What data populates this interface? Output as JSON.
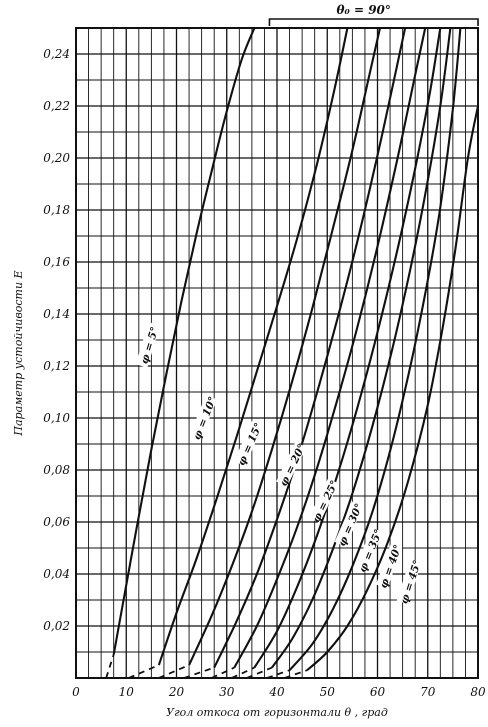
{
  "chart_data": {
    "type": "line",
    "xlabel": "Угол откоса от горизонтали θ , град",
    "ylabel": "Параметр устойчивости E",
    "xlim": [
      0,
      80
    ],
    "ylim": [
      0,
      0.25
    ],
    "grid": true,
    "x_ticks": [
      "0",
      "10",
      "20",
      "30",
      "40",
      "50",
      "60",
      "70",
      "80"
    ],
    "y_ticks": [
      "0,02",
      "0,04",
      "0,06",
      "0,08",
      "0,10",
      "0,12",
      "0,14",
      "0,16",
      "0,18",
      "0,20",
      "0,22",
      "0,24"
    ],
    "annotation": "θ₀ = 90°",
    "series": [
      {
        "name": "φ = 5°",
        "dash_x": [
          6.0,
          7.5
        ],
        "x": [
          7.5,
          9,
          12,
          15,
          18,
          21,
          24,
          27,
          30,
          33,
          35.5
        ],
        "y": [
          0.009,
          0.025,
          0.057,
          0.088,
          0.117,
          0.145,
          0.171,
          0.195,
          0.218,
          0.238,
          0.25
        ]
      },
      {
        "name": "φ = 10°",
        "dash_x": [
          10.5,
          16.5
        ],
        "x": [
          16.5,
          20,
          24,
          28,
          32,
          36,
          40,
          44,
          48,
          51.5,
          54
        ],
        "y": [
          0.005,
          0.025,
          0.046,
          0.069,
          0.093,
          0.118,
          0.143,
          0.169,
          0.198,
          0.227,
          0.25
        ]
      },
      {
        "name": "φ = 15°",
        "dash_x": [
          16.5,
          22.5
        ],
        "x": [
          22.5,
          27,
          31,
          35,
          39,
          43,
          47,
          51,
          55,
          58.5,
          60.5
        ],
        "y": [
          0.005,
          0.024,
          0.043,
          0.064,
          0.088,
          0.114,
          0.142,
          0.172,
          0.203,
          0.233,
          0.25
        ]
      },
      {
        "name": "φ = 20°",
        "dash_x": [
          21.5,
          27.5
        ],
        "x": [
          27.5,
          32,
          36,
          40,
          44,
          48,
          52,
          56,
          60,
          63.5,
          65.5
        ],
        "y": [
          0.004,
          0.022,
          0.04,
          0.061,
          0.084,
          0.11,
          0.138,
          0.168,
          0.201,
          0.232,
          0.25
        ]
      },
      {
        "name": "φ = 25°",
        "dash_x": [
          27.0,
          31.5
        ],
        "x": [
          31.5,
          36,
          40,
          44,
          48,
          52,
          56,
          60,
          64,
          67.5,
          69.5
        ],
        "y": [
          0.004,
          0.02,
          0.038,
          0.058,
          0.081,
          0.107,
          0.135,
          0.166,
          0.2,
          0.232,
          0.25
        ]
      },
      {
        "name": "φ = 30°",
        "dash_x": [
          31.0,
          35.5
        ],
        "x": [
          35.5,
          40,
          44,
          48,
          52,
          56,
          60,
          64,
          67.5,
          70.5,
          72.5
        ],
        "y": [
          0.004,
          0.018,
          0.035,
          0.055,
          0.078,
          0.104,
          0.133,
          0.165,
          0.196,
          0.226,
          0.25
        ]
      },
      {
        "name": "φ = 35°",
        "dash_x": [
          34.0,
          39.0
        ],
        "x": [
          39,
          43,
          47,
          51,
          55,
          59,
          63,
          66.5,
          69.5,
          72.5,
          74.5
        ],
        "y": [
          0.004,
          0.015,
          0.03,
          0.049,
          0.071,
          0.097,
          0.127,
          0.157,
          0.186,
          0.22,
          0.25
        ]
      },
      {
        "name": "φ = 40°",
        "dash_x": [
          38.0,
          42.5
        ],
        "x": [
          42.5,
          47,
          51,
          55,
          59,
          63,
          67,
          70,
          72.5,
          75,
          76.5
        ],
        "y": [
          0.003,
          0.013,
          0.026,
          0.043,
          0.064,
          0.091,
          0.124,
          0.153,
          0.181,
          0.219,
          0.25
        ]
      },
      {
        "name": "φ = 45°",
        "dash_x": [
          41.5,
          46.0
        ],
        "x": [
          46,
          50,
          54,
          58,
          62,
          66,
          70,
          73,
          75.5,
          78,
          80
        ],
        "y": [
          0.003,
          0.01,
          0.02,
          0.034,
          0.052,
          0.075,
          0.105,
          0.135,
          0.165,
          0.2,
          0.22
        ]
      }
    ],
    "labels": [
      {
        "text": "φ = 5°",
        "x": 14.5,
        "y": 0.128,
        "angle": -73
      },
      {
        "text": "φ = 10°",
        "x": 25.5,
        "y": 0.1,
        "angle": -68
      },
      {
        "text": "φ = 15°",
        "x": 34.5,
        "y": 0.09,
        "angle": -66
      },
      {
        "text": "φ = 20°",
        "x": 43.0,
        "y": 0.082,
        "angle": -64
      },
      {
        "text": "φ = 25°",
        "x": 49.5,
        "y": 0.068,
        "angle": -64
      },
      {
        "text": "φ = 30°",
        "x": 54.5,
        "y": 0.059,
        "angle": -66
      },
      {
        "text": "φ = 35°",
        "x": 58.5,
        "y": 0.049,
        "angle": -68
      },
      {
        "text": "φ = 40°",
        "x": 62.5,
        "y": 0.043,
        "angle": -70
      },
      {
        "text": "φ = 45°",
        "x": 66.5,
        "y": 0.037,
        "angle": -72
      }
    ]
  }
}
